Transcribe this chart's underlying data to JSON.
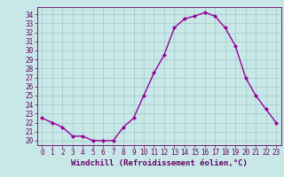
{
  "x": [
    0,
    1,
    2,
    3,
    4,
    5,
    6,
    7,
    8,
    9,
    10,
    11,
    12,
    13,
    14,
    15,
    16,
    17,
    18,
    19,
    20,
    21,
    22,
    23
  ],
  "y": [
    22.5,
    22.0,
    21.5,
    20.5,
    20.5,
    20.0,
    20.0,
    20.0,
    21.5,
    22.5,
    25.0,
    27.5,
    29.5,
    32.5,
    33.5,
    33.8,
    34.2,
    33.8,
    32.5,
    30.5,
    27.0,
    25.0,
    23.5,
    22.0
  ],
  "line_color": "#990099",
  "marker": "D",
  "marker_size": 2,
  "bg_color": "#c8e8e8",
  "grid_color": "#a0c8c8",
  "xlabel": "Windchill (Refroidissement éolien,°C)",
  "xlabel_color": "#660066",
  "tick_color": "#660066",
  "ylim": [
    19.5,
    34.8
  ],
  "xlim": [
    -0.5,
    23.5
  ],
  "yticks": [
    20,
    21,
    22,
    23,
    24,
    25,
    26,
    27,
    28,
    29,
    30,
    31,
    32,
    33,
    34
  ],
  "xticks": [
    0,
    1,
    2,
    3,
    4,
    5,
    6,
    7,
    8,
    9,
    10,
    11,
    12,
    13,
    14,
    15,
    16,
    17,
    18,
    19,
    20,
    21,
    22,
    23
  ],
  "tick_fontsize": 5.5,
  "xlabel_fontsize": 6.5
}
